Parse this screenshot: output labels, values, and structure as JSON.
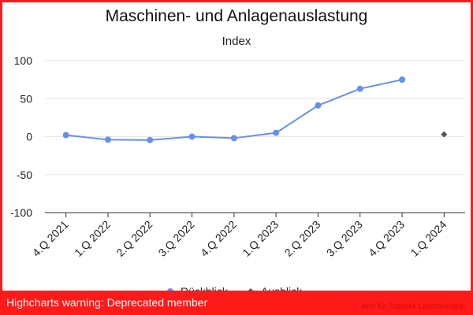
{
  "chart_data": {
    "type": "line",
    "title": "Maschinen- und Anlagenauslastung",
    "subtitle": "Index",
    "categories": [
      "4.Q 2021",
      "1.Q 2022",
      "2.Q 2022",
      "3.Q 2022",
      "4.Q 2022",
      "1.Q 2023",
      "2.Q 2023",
      "3.Q 2023",
      "4.Q 2023",
      "1.Q 2024"
    ],
    "series": [
      {
        "name": "Rückblick",
        "color": "#6690f0",
        "marker": "circle",
        "values": [
          2,
          -4,
          -4.5,
          0,
          -2,
          5,
          41,
          63,
          75,
          null
        ]
      },
      {
        "name": "Ausblick",
        "color": "#555555",
        "marker": "diamond",
        "values": [
          null,
          null,
          null,
          null,
          null,
          null,
          null,
          null,
          null,
          3
        ]
      }
    ],
    "ylim": [
      -100,
      100
    ],
    "yticks": [
      -100,
      -50,
      0,
      50,
      100
    ],
    "grid": true,
    "legend": "bottom-center"
  },
  "warning": "Highcharts warning: Deprecated member",
  "credit": "Amt für Statistik Liechtenstein"
}
